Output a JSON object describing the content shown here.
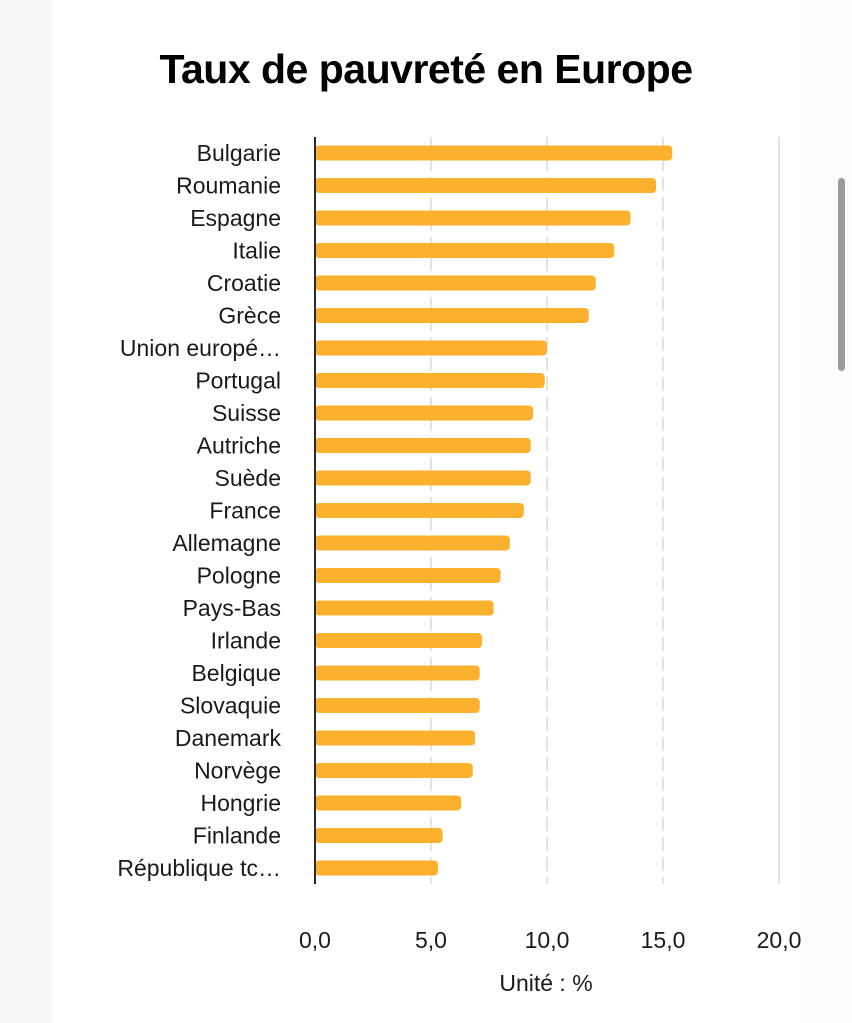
{
  "chart_data": {
    "type": "bar",
    "orientation": "horizontal",
    "title": "Taux de pauvreté en Europe",
    "xlabel": "Unité : %",
    "ylabel": "",
    "xlim": [
      0,
      20
    ],
    "x_ticks": [
      0,
      5,
      10,
      15,
      20
    ],
    "x_tick_labels": [
      "0,0",
      "5,0",
      "10,0",
      "15,0",
      "20,0"
    ],
    "grid": true,
    "legend": "none",
    "bar_color": "#fbb02e",
    "categories": [
      "Bulgarie",
      "Roumanie",
      "Espagne",
      "Italie",
      "Croatie",
      "Grèce",
      "Union europé…",
      "Portugal",
      "Suisse",
      "Autriche",
      "Suède",
      "France",
      "Allemagne",
      "Pologne",
      "Pays-Bas",
      "Irlande",
      "Belgique",
      "Slovaquie",
      "Danemark",
      "Norvège",
      "Hongrie",
      "Finlande",
      "République tc…"
    ],
    "values": [
      15.4,
      14.7,
      13.6,
      12.9,
      12.1,
      11.8,
      10.0,
      9.9,
      9.4,
      9.3,
      9.3,
      9.0,
      8.4,
      8.0,
      7.7,
      7.2,
      7.1,
      7.1,
      6.9,
      6.8,
      6.3,
      5.5,
      5.3
    ]
  }
}
